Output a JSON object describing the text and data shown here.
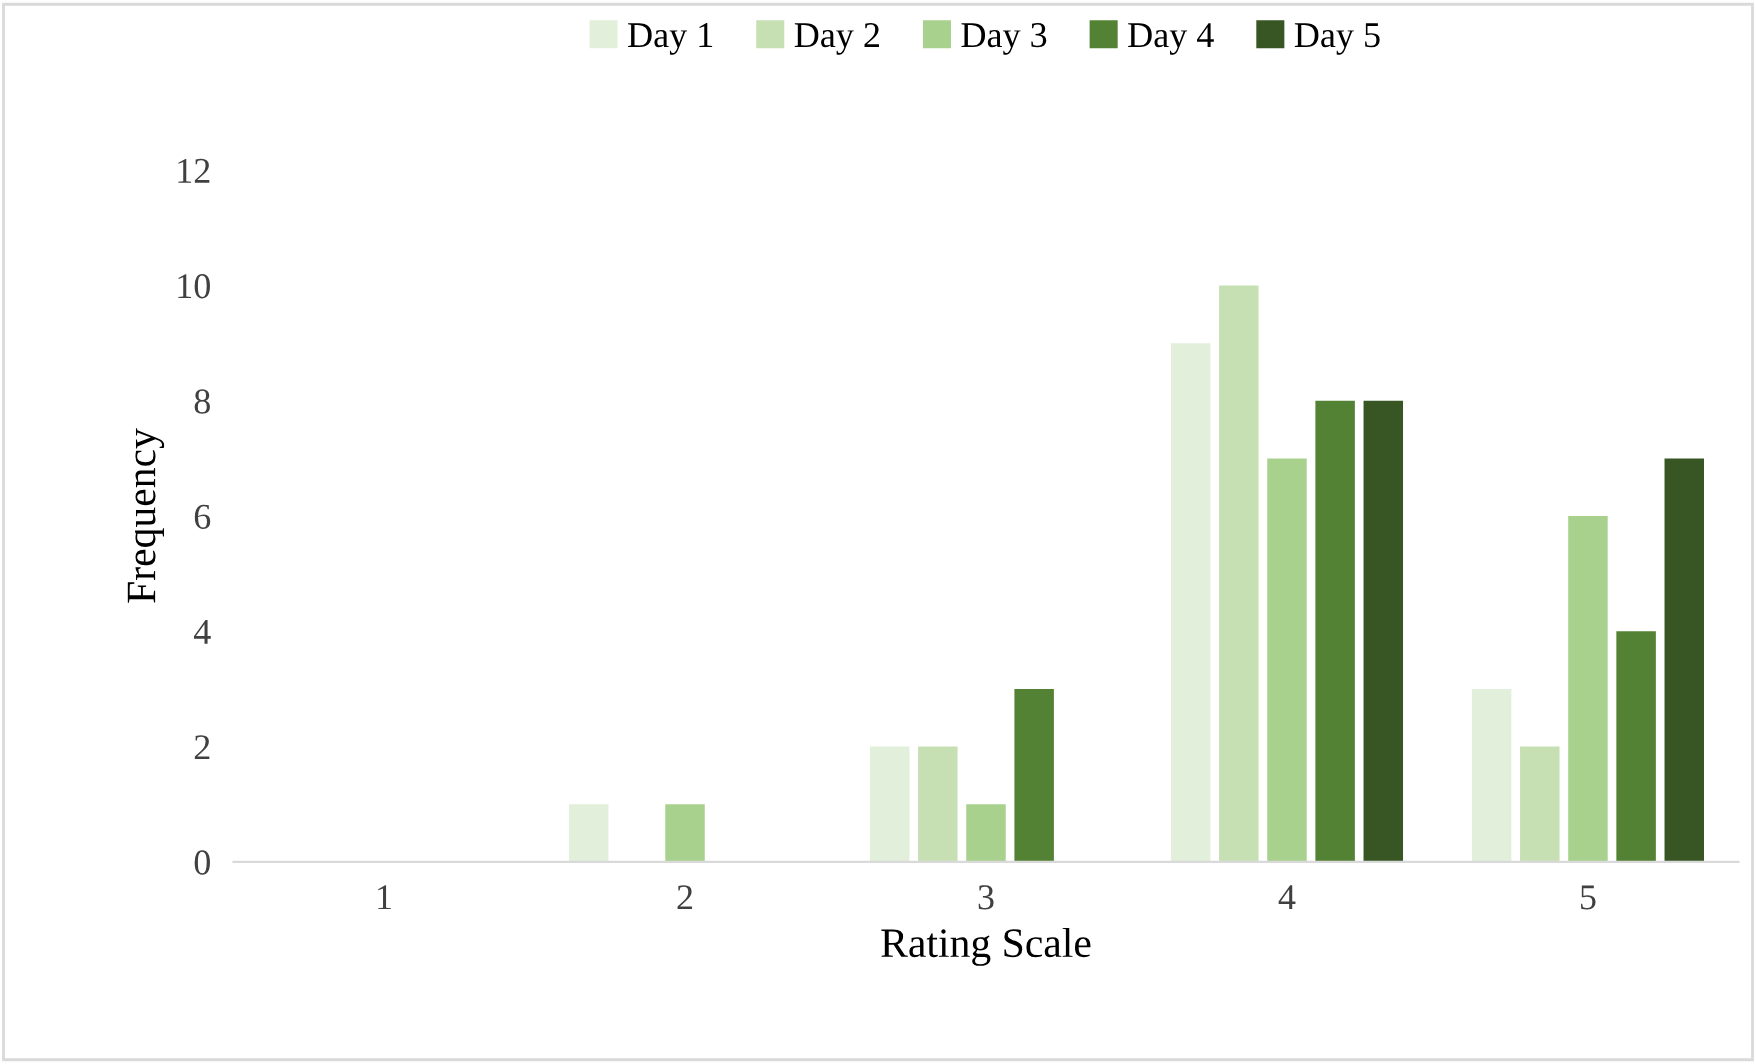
{
  "chart_data": {
    "type": "bar",
    "xlabel": "Rating Scale",
    "ylabel": "Frequency",
    "categories": [
      "1",
      "2",
      "3",
      "4",
      "5"
    ],
    "series": [
      {
        "name": "Day 1",
        "color": "#e2efda",
        "values": [
          0,
          1,
          2,
          9,
          3
        ]
      },
      {
        "name": "Day 2",
        "color": "#c6e0b4",
        "values": [
          0,
          0,
          2,
          10,
          2
        ]
      },
      {
        "name": "Day 3",
        "color": "#a9d18e",
        "values": [
          0,
          1,
          1,
          7,
          6
        ]
      },
      {
        "name": "Day 4",
        "color": "#548235",
        "values": [
          0,
          0,
          3,
          8,
          4
        ]
      },
      {
        "name": "Day 5",
        "color": "#375623",
        "values": [
          0,
          0,
          0,
          8,
          7
        ]
      }
    ],
    "ylim": [
      0,
      12
    ],
    "yticks": [
      0,
      2,
      4,
      6,
      8,
      10,
      12
    ],
    "grid": false,
    "legend": "top"
  }
}
